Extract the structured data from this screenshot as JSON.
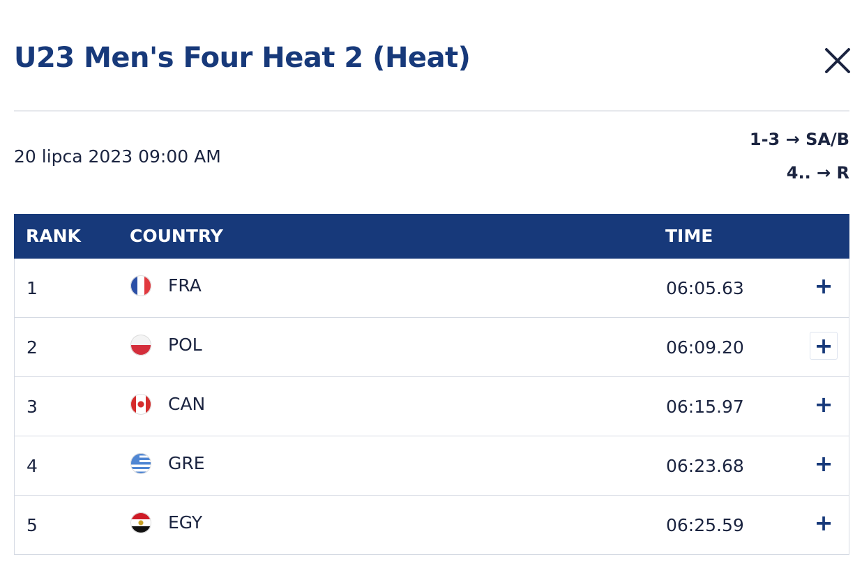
{
  "header": {
    "title": "U23 Men's Four Heat 2 (Heat)"
  },
  "date": "20 lipca 2023 09:00 AM",
  "progression": [
    "1-3 → SA/B",
    "4.. → R"
  ],
  "table": {
    "columns": [
      "RANK",
      "COUNTRY",
      "TIME"
    ],
    "rows": [
      [
        "1",
        "FRA",
        "06:05.63"
      ],
      [
        "2",
        "POL",
        "06:09.20"
      ],
      [
        "3",
        "CAN",
        "06:15.97"
      ],
      [
        "4",
        "GRE",
        "06:23.68"
      ],
      [
        "5",
        "EGY",
        "06:25.59"
      ]
    ]
  }
}
